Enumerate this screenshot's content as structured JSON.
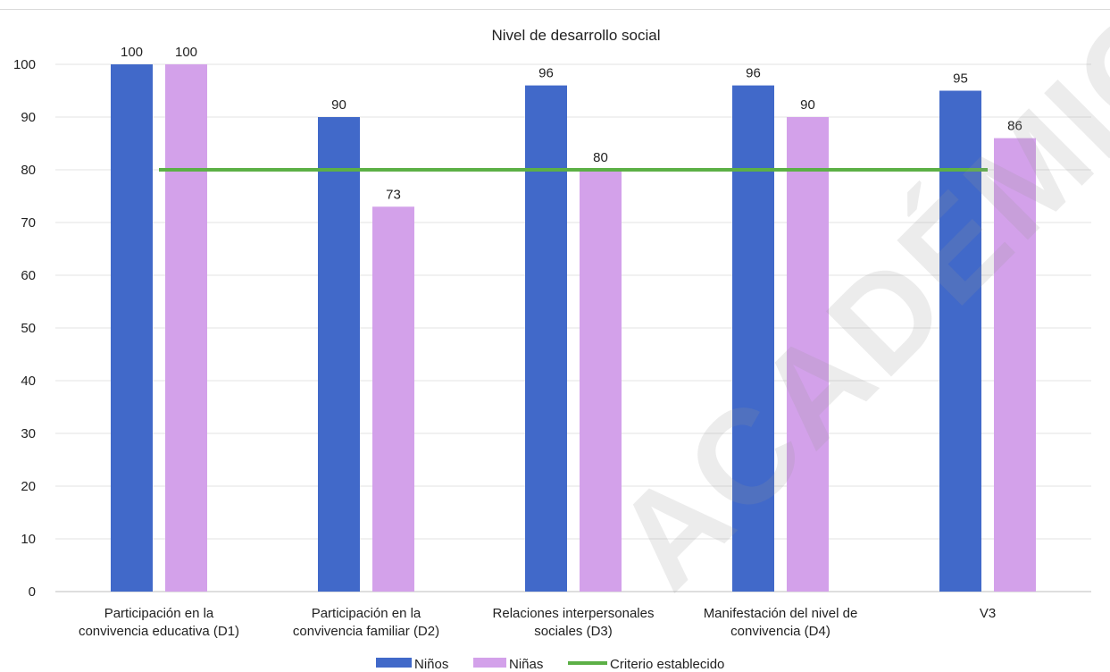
{
  "chart_data": {
    "type": "bar",
    "title": "Nivel de desarrollo social",
    "xlabel": "",
    "ylabel": "",
    "ylim": [
      0,
      100
    ],
    "yticks": [
      0,
      10,
      20,
      30,
      40,
      50,
      60,
      70,
      80,
      90,
      100
    ],
    "grid": true,
    "legend_position": "bottom",
    "categories": [
      [
        "Participación en la",
        "convivencia educativa (D1)"
      ],
      [
        "Participación en la",
        "convivencia familiar (D2)"
      ],
      [
        "Relaciones interpersonales",
        "sociales (D3)"
      ],
      [
        "Manifestación del nivel de",
        "convivencia (D4)"
      ],
      [
        "V3"
      ]
    ],
    "series": [
      {
        "name": "Niños",
        "color": "#4169c9",
        "values": [
          100,
          90,
          96,
          96,
          95
        ]
      },
      {
        "name": "Niñas",
        "color": "#d3a1ea",
        "values": [
          100,
          73,
          80,
          90,
          86
        ]
      }
    ],
    "reference_line": {
      "name": "Criterio establecido",
      "color": "#5cb046",
      "value": 80
    }
  },
  "watermark": "ACADÉMICO"
}
